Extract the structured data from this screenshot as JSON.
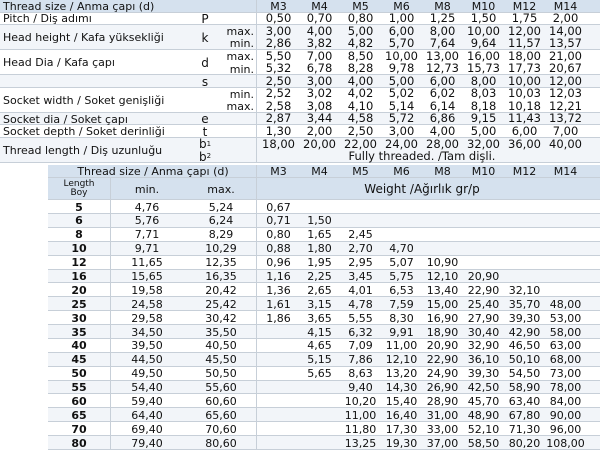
{
  "spec_table": {
    "header": {
      "label": "Thread size / Anma çapı (d)",
      "sizes": [
        "M3",
        "M4",
        "M5",
        "M6",
        "M8",
        "M10",
        "M12",
        "M14"
      ]
    },
    "groups": [
      {
        "label": "Pitch / Diş adımı",
        "symbol": "P",
        "lines": [
          {
            "values": [
              "0,50",
              "0,70",
              "0,80",
              "1,00",
              "1,25",
              "1,50",
              "1,75",
              "2,00"
            ]
          }
        ]
      },
      {
        "label": "Head height / Kafa yüksekliği",
        "symbol": "k",
        "lines": [
          {
            "qualifier": "max.",
            "values": [
              "3,00",
              "4,00",
              "5,00",
              "6,00",
              "8,00",
              "10,00",
              "12,00",
              "14,00"
            ]
          },
          {
            "qualifier": "min.",
            "values": [
              "2,86",
              "3,82",
              "4,82",
              "5,70",
              "7,64",
              "9,64",
              "11,57",
              "13,57"
            ]
          }
        ]
      },
      {
        "label": "Head Dia / Kafa çapı",
        "symbol": "d",
        "lines": [
          {
            "qualifier": "max.",
            "values": [
              "5,50",
              "7,00",
              "8,50",
              "10,00",
              "13,00",
              "16,00",
              "18,00",
              "21,00"
            ]
          },
          {
            "qualifier": "min.",
            "values": [
              "5,32",
              "6,78",
              "8,28",
              "9,78",
              "12,73",
              "15,73",
              "17,73",
              "20,67"
            ]
          }
        ]
      },
      {
        "symbol": "s",
        "lines": [
          {
            "values": [
              "2,50",
              "3,00",
              "4,00",
              "5,00",
              "6,00",
              "8,00",
              "10,00",
              "12,00"
            ]
          }
        ]
      },
      {
        "label": "Socket width / Soket genişliği",
        "lines": [
          {
            "qualifier": "min.",
            "values": [
              "2,52",
              "3,02",
              "4,02",
              "5,02",
              "6,02",
              "8,03",
              "10,03",
              "12,03"
            ]
          },
          {
            "qualifier": "max.",
            "values": [
              "2,58",
              "3,08",
              "4,10",
              "5,14",
              "6,14",
              "8,18",
              "10,18",
              "12,21"
            ]
          }
        ]
      },
      {
        "label": "Socket dia / Soket çapı",
        "symbol": "e",
        "lines": [
          {
            "values": [
              "2,87",
              "3,44",
              "4,58",
              "5,72",
              "6,86",
              "9,15",
              "11,43",
              "13,72"
            ]
          }
        ]
      },
      {
        "label": "Socket depth / Soket derinliği",
        "symbol": "t",
        "lines": [
          {
            "values": [
              "1,30",
              "2,00",
              "2,50",
              "3,00",
              "4,00",
              "5,00",
              "6,00",
              "7,00"
            ]
          }
        ]
      },
      {
        "label": "Thread length / Diş uzunluğu",
        "lines": [
          {
            "symbol": "b",
            "symbol_sup": "1",
            "values": [
              "18,00",
              "20,00",
              "22,00",
              "24,00",
              "28,00",
              "32,00",
              "36,00",
              "40,00"
            ]
          },
          {
            "symbol": "b",
            "symbol_sup": "2",
            "note": "Fully threaded. /Tam dişli."
          }
        ]
      }
    ]
  },
  "weight_table": {
    "header": {
      "label": "Thread size / Anma çapı (d)",
      "sizes": [
        "M3",
        "M4",
        "M5",
        "M6",
        "M8",
        "M10",
        "M12",
        "M14"
      ]
    },
    "subheader": {
      "length": "Length",
      "length_alt": "Boy",
      "min": "min.",
      "max": "max.",
      "weight": "Weight /Ağırlık gr/p"
    },
    "rows": [
      {
        "length": 5,
        "min": "4,76",
        "max": "5,24",
        "weights": [
          "0,67",
          null,
          null,
          null,
          null,
          null,
          null,
          null
        ]
      },
      {
        "length": 6,
        "min": "5,76",
        "max": "6,24",
        "weights": [
          "0,71",
          "1,50",
          null,
          null,
          null,
          null,
          null,
          null
        ]
      },
      {
        "length": 8,
        "min": "7,71",
        "max": "8,29",
        "weights": [
          "0,80",
          "1,65",
          "2,45",
          null,
          null,
          null,
          null,
          null
        ]
      },
      {
        "length": 10,
        "min": "9,71",
        "max": "10,29",
        "weights": [
          "0,88",
          "1,80",
          "2,70",
          "4,70",
          null,
          null,
          null,
          null
        ]
      },
      {
        "length": 12,
        "min": "11,65",
        "max": "12,35",
        "weights": [
          "0,96",
          "1,95",
          "2,95",
          "5,07",
          "10,90",
          null,
          null,
          null
        ]
      },
      {
        "length": 16,
        "min": "15,65",
        "max": "16,35",
        "weights": [
          "1,16",
          "2,25",
          "3,45",
          "5,75",
          "12,10",
          "20,90",
          null,
          null
        ]
      },
      {
        "length": 20,
        "min": "19,58",
        "max": "20,42",
        "weights": [
          "1,36",
          "2,65",
          "4,01",
          "6,53",
          "13,40",
          "22,90",
          "32,10",
          null
        ]
      },
      {
        "length": 25,
        "min": "24,58",
        "max": "25,42",
        "weights": [
          "1,61",
          "3,15",
          "4,78",
          "7,59",
          "15,00",
          "25,40",
          "35,70",
          "48,00"
        ]
      },
      {
        "length": 30,
        "min": "29,58",
        "max": "30,42",
        "weights": [
          "1,86",
          "3,65",
          "5,55",
          "8,30",
          "16,90",
          "27,90",
          "39,30",
          "53,00"
        ]
      },
      {
        "length": 35,
        "min": "34,50",
        "max": "35,50",
        "weights": [
          null,
          "4,15",
          "6,32",
          "9,91",
          "18,90",
          "30,40",
          "42,90",
          "58,00"
        ]
      },
      {
        "length": 40,
        "min": "39,50",
        "max": "40,50",
        "weights": [
          null,
          "4,65",
          "7,09",
          "11,00",
          "20,90",
          "32,90",
          "46,50",
          "63,00"
        ]
      },
      {
        "length": 45,
        "min": "44,50",
        "max": "45,50",
        "weights": [
          null,
          "5,15",
          "7,86",
          "12,10",
          "22,90",
          "36,10",
          "50,10",
          "68,00"
        ]
      },
      {
        "length": 50,
        "min": "49,50",
        "max": "50,50",
        "weights": [
          null,
          "5,65",
          "8,63",
          "13,20",
          "24,90",
          "39,30",
          "54,50",
          "73,00"
        ]
      },
      {
        "length": 55,
        "min": "54,40",
        "max": "55,60",
        "weights": [
          null,
          null,
          "9,40",
          "14,30",
          "26,90",
          "42,50",
          "58,90",
          "78,00"
        ]
      },
      {
        "length": 60,
        "min": "59,40",
        "max": "60,60",
        "weights": [
          null,
          null,
          "10,20",
          "15,40",
          "28,90",
          "45,70",
          "63,40",
          "84,00"
        ]
      },
      {
        "length": 65,
        "min": "64,40",
        "max": "65,60",
        "weights": [
          null,
          null,
          "11,00",
          "16,40",
          "31,00",
          "48,90",
          "67,80",
          "90,00"
        ]
      },
      {
        "length": 70,
        "min": "69,40",
        "max": "70,60",
        "weights": [
          null,
          null,
          "11,80",
          "17,30",
          "33,00",
          "52,10",
          "71,30",
          "96,00"
        ]
      },
      {
        "length": 80,
        "min": "79,40",
        "max": "80,60",
        "weights": [
          null,
          null,
          "13,25",
          "19,30",
          "37,00",
          "58,50",
          "80,20",
          "108,00"
        ]
      }
    ]
  }
}
